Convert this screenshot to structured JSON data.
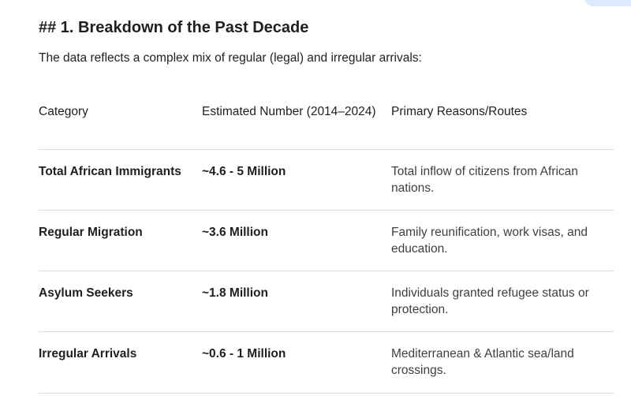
{
  "heading": "## 1. Breakdown of the Past Decade",
  "intro": "The data reflects a complex mix of regular (legal) and irregular arrivals:",
  "table": {
    "headers": [
      "Category",
      "Estimated Number (2014–2024)",
      "Primary Reasons/Routes"
    ],
    "rows": [
      {
        "category": "Total African Immigrants",
        "number": "~4.6 - 5 Million",
        "reasons": "Total inflow of citizens from African nations."
      },
      {
        "category": "Regular Migration",
        "number": "~3.6 Million",
        "reasons": "Family reunification, work visas, and education."
      },
      {
        "category": "Asylum Seekers",
        "number": "~1.8 Million",
        "reasons": "Individuals granted refugee status or protection."
      },
      {
        "category": "Irregular Arrivals",
        "number": "~0.6 - 1 Million",
        "reasons": "Mediterranean & Atlantic sea/land crossings."
      }
    ]
  }
}
